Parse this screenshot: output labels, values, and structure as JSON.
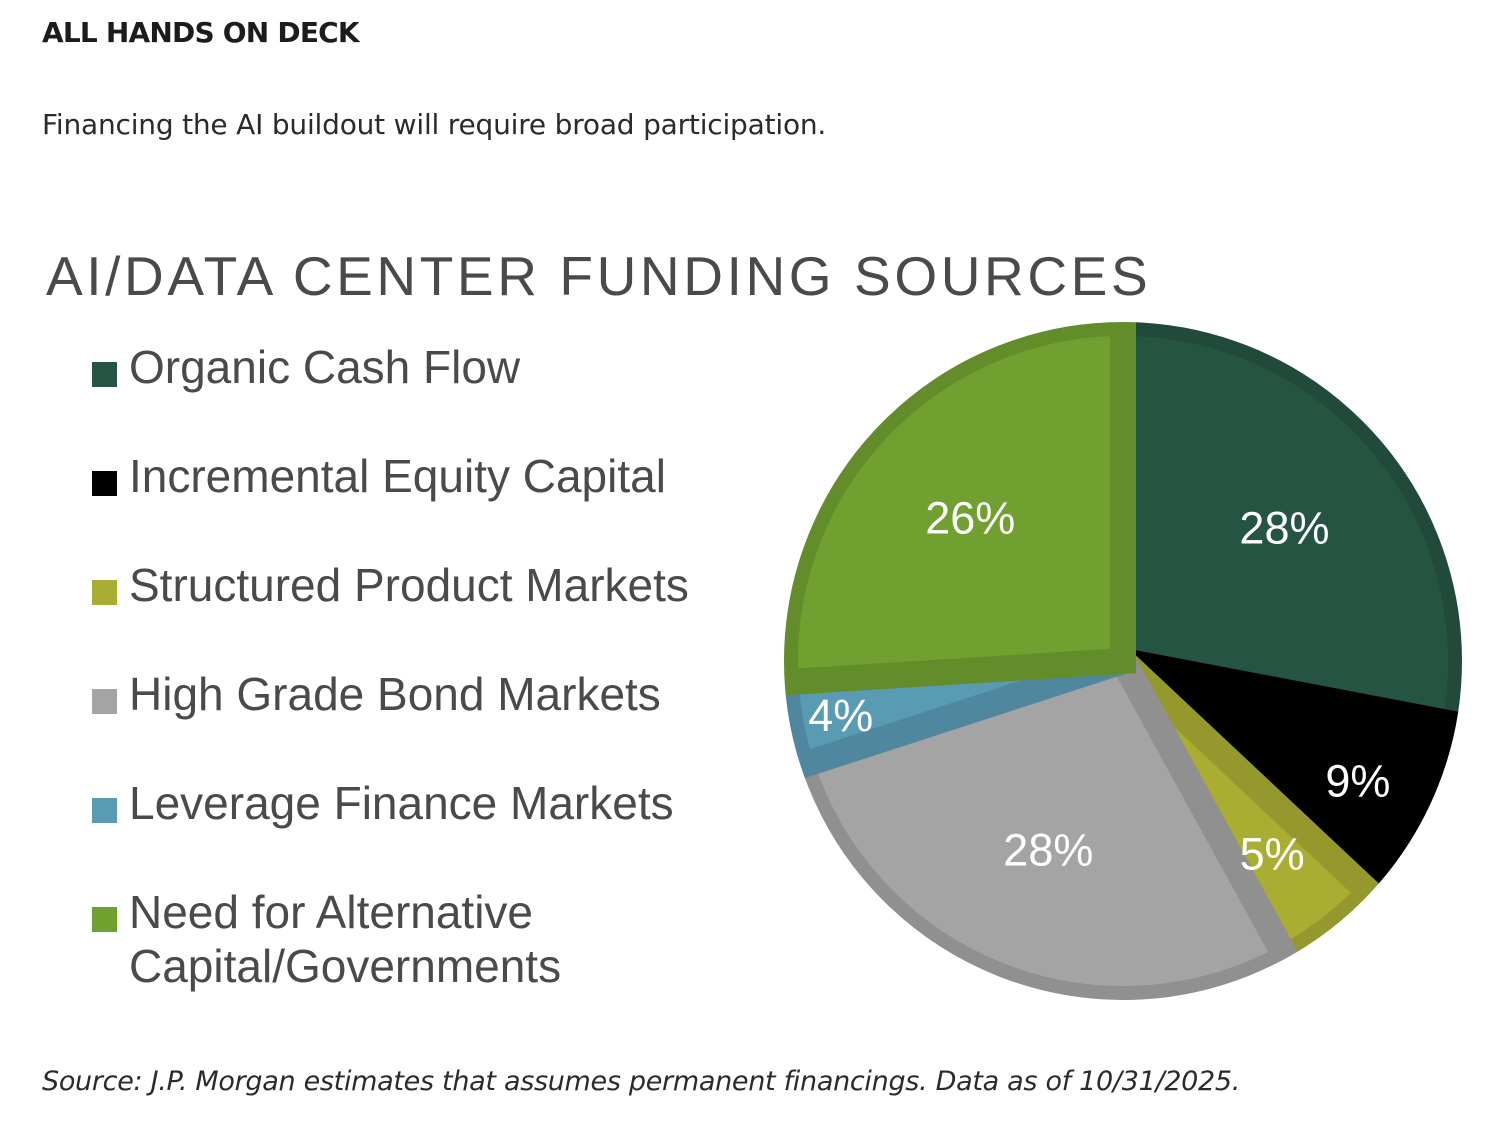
{
  "header": {
    "eyebrow": "ALL HANDS ON DECK",
    "subtitle": "Financing the AI buildout will require broad participation."
  },
  "footer": {
    "source": "Source: J.P. Morgan estimates that assumes permanent financings. Data as of 10/31/2025."
  },
  "chart_data": {
    "type": "pie",
    "title": "AI/DATA CENTER FUNDING SOURCES",
    "legend_position": "left",
    "slices": [
      {
        "name": "Organic Cash Flow",
        "value": 28,
        "label": "28%",
        "color": "#265443"
      },
      {
        "name": "Incremental Equity Capital",
        "value": 9,
        "label": "9%",
        "color": "#000000"
      },
      {
        "name": "Structured Product Markets",
        "value": 5,
        "label": "5%",
        "color": "#a9ad32"
      },
      {
        "name": "High Grade Bond Markets",
        "value": 28,
        "label": "28%",
        "color": "#a4a4a4"
      },
      {
        "name": "Leverage Finance Markets",
        "value": 4,
        "label": "4%",
        "color": "#5a9bb4"
      },
      {
        "name": "Need for Alternative Capital/Governments",
        "value": 26,
        "label": "26%",
        "color": "#70a030"
      }
    ]
  }
}
